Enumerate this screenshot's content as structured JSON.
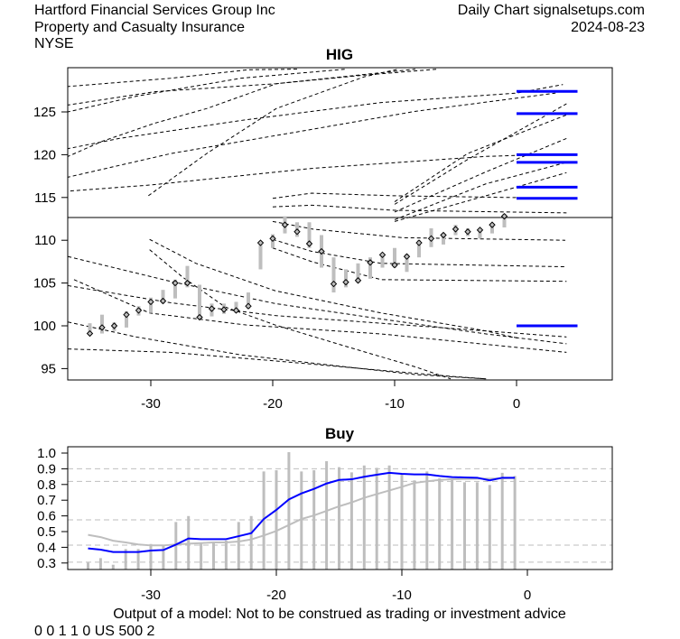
{
  "header": {
    "company": "Hartford Financial Services Group Inc",
    "industry": "Property and Casualty Insurance",
    "exchange": "NYSE",
    "source": "Daily Chart signalsetups.com",
    "date": "2024-08-23"
  },
  "footer": {
    "disclaimer": "Output of a model: Not to be construed as trading or investment advice",
    "code": "0 0 1 1 0 US 500 2"
  },
  "chart_data": [
    {
      "type": "candlestick",
      "title": "HIG",
      "xlim": [
        -37,
        8
      ],
      "ylim": [
        93.8,
        130.2
      ],
      "x_ticks": [
        -30,
        -20,
        -10,
        0
      ],
      "y_ticks": [
        95,
        100,
        105,
        110,
        115,
        120,
        125
      ],
      "colors": {
        "bars": "#bebebe",
        "levels": "#0000ff",
        "trend_lines": "#000000"
      },
      "days": [
        -35,
        -34,
        -33,
        -32,
        -31,
        -30,
        -29,
        -28,
        -27,
        -26,
        -25,
        -24,
        -23,
        -22,
        -21,
        -20,
        -19,
        -18,
        -17,
        -16,
        -15,
        -14,
        -13,
        -12,
        -11,
        -10,
        -9,
        -8,
        -7,
        -6,
        -5,
        -4,
        -3,
        -2,
        -1
      ],
      "high": [
        100.3,
        101.3,
        100.4,
        101.7,
        102.3,
        103.3,
        104.2,
        105.4,
        107.0,
        104.8,
        102.6,
        102.6,
        102.8,
        103.9,
        109.9,
        110.7,
        112.8,
        112.1,
        112.1,
        110.6,
        108.0,
        106.6,
        107.3,
        108.0,
        108.5,
        109.1,
        108.4,
        110.0,
        111.4,
        110.8,
        111.8,
        111.4,
        111.4,
        112.0,
        113.1
      ],
      "low": [
        98.9,
        99.1,
        99.4,
        99.8,
        101.2,
        101.5,
        102.6,
        103.2,
        104.5,
        100.8,
        101.1,
        101.4,
        101.5,
        102.0,
        106.6,
        109.1,
        110.8,
        110.4,
        109.1,
        106.8,
        103.9,
        104.5,
        105.0,
        105.5,
        106.8,
        106.8,
        106.3,
        108.0,
        109.2,
        109.5,
        110.6,
        110.5,
        110.2,
        110.8,
        111.5
      ],
      "close": [
        99.1,
        99.8,
        100.0,
        101.3,
        101.8,
        102.8,
        102.9,
        105.0,
        105.0,
        101.0,
        102.0,
        101.9,
        101.8,
        102.3,
        109.7,
        110.2,
        111.8,
        111.0,
        109.6,
        108.7,
        104.9,
        105.1,
        105.3,
        107.4,
        108.3,
        107.1,
        108.1,
        109.7,
        110.2,
        110.6,
        111.3,
        111.0,
        111.2,
        111.8,
        112.8
      ],
      "horizontal_line": 112.66,
      "levels": [
        127.4,
        124.8,
        120.0,
        119.1,
        116.2,
        114.9,
        100.0
      ],
      "trend_lines": [
        [
          [
            -36.9,
            127.96
          ],
          [
            -28.3,
            128.94
          ],
          [
            -22.0,
            129.93
          ],
          [
            -18.0,
            130.0
          ]
        ],
        [
          [
            -36.9,
            125.78
          ],
          [
            -29.7,
            127.36
          ],
          [
            -19.7,
            128.3
          ],
          [
            -8.3,
            130.0
          ]
        ],
        [
          [
            -36.9,
            124.97
          ],
          [
            -31.2,
            126.83
          ],
          [
            -22.6,
            128.94
          ],
          [
            -14.0,
            130.0
          ]
        ],
        [
          [
            -36.9,
            120.68
          ],
          [
            -32.6,
            121.9
          ],
          [
            -22.6,
            124.0
          ],
          [
            -11.1,
            126.1
          ],
          [
            0,
            127.2
          ],
          [
            3.8,
            128.2
          ]
        ],
        [
          [
            -36.9,
            119.73
          ],
          [
            -34.0,
            121.56
          ],
          [
            -29.7,
            123.67
          ],
          [
            -25.4,
            125.4
          ],
          [
            -19.7,
            128.3
          ],
          [
            -12.5,
            129.3
          ],
          [
            -6.5,
            130.0
          ]
        ],
        [
          [
            -36.9,
            117.34
          ],
          [
            -28.3,
            120.15
          ],
          [
            -16.8,
            122.96
          ],
          [
            -8.3,
            125.07
          ],
          [
            3.2,
            127.2
          ]
        ],
        [
          [
            -36.6,
            115.76
          ],
          [
            -30.0,
            116.46
          ],
          [
            -16.8,
            118.4
          ],
          [
            -2.5,
            119.8
          ],
          [
            1.5,
            119.98
          ]
        ],
        [
          [
            -30.2,
            115.2
          ],
          [
            -25.4,
            120.15
          ],
          [
            -19.7,
            125.4
          ],
          [
            -12.5,
            129.1
          ],
          [
            -9.7,
            130.0
          ]
        ],
        [
          [
            -20,
            114.9
          ],
          [
            -16.8,
            115.5
          ],
          [
            -10,
            115.2
          ],
          [
            4.1,
            114.9
          ]
        ],
        [
          [
            -20,
            113.9
          ],
          [
            -16.8,
            114.1
          ],
          [
            -10,
            113.5
          ],
          [
            4.1,
            113.2
          ]
        ],
        [
          [
            -10,
            114.2
          ],
          [
            -4.0,
            119.45
          ],
          [
            4.1,
            125.95
          ]
        ],
        [
          [
            -10,
            114.5
          ],
          [
            -4.0,
            120.15
          ],
          [
            4.1,
            124.65
          ]
        ],
        [
          [
            -10,
            113.3
          ],
          [
            -2.5,
            118.0
          ],
          [
            4.1,
            121.9
          ]
        ],
        [
          [
            -10,
            112.4
          ],
          [
            -2.5,
            116.6
          ],
          [
            4.1,
            119.1
          ]
        ],
        [
          [
            -10,
            112.2
          ],
          [
            -2.5,
            115.2
          ],
          [
            4.1,
            117.9
          ]
        ],
        [
          [
            -20,
            112.2
          ],
          [
            -16.7,
            111.3
          ],
          [
            -9.3,
            110.3
          ],
          [
            4.0,
            110.0
          ]
        ],
        [
          [
            -20,
            110.1
          ],
          [
            -16.8,
            108.7
          ],
          [
            -11.1,
            107.3
          ],
          [
            4.1,
            106.9
          ]
        ],
        [
          [
            -20,
            109.1
          ],
          [
            -16.8,
            107.5
          ],
          [
            -11.1,
            105.4
          ],
          [
            4.1,
            105.2
          ]
        ],
        [
          [
            -36.8,
            108.1
          ],
          [
            -28.4,
            105.2
          ],
          [
            -19.8,
            102.6
          ],
          [
            -11.1,
            100.8
          ],
          [
            -2.5,
            99.05
          ],
          [
            4.1,
            97.9
          ]
        ],
        [
          [
            -36.8,
            104.7
          ],
          [
            -28.4,
            102.7
          ],
          [
            -19.8,
            101.2
          ],
          [
            -11.1,
            100.3
          ],
          [
            -2.5,
            99.4
          ],
          [
            4.1,
            98.7
          ]
        ],
        [
          [
            -36.3,
            105.4
          ],
          [
            -30.1,
            101.5
          ],
          [
            -22.2,
            100.1
          ],
          [
            -11.1,
            99.05
          ],
          [
            4.1,
            96.9
          ]
        ],
        [
          [
            -36.8,
            100.45
          ],
          [
            -31.2,
            98.7
          ],
          [
            -22.6,
            96.6
          ],
          [
            -14.0,
            95.2
          ],
          [
            -8.3,
            94.3
          ],
          [
            -2.5,
            93.8
          ]
        ],
        [
          [
            -36.8,
            97.3
          ],
          [
            -28.4,
            96.9
          ],
          [
            -19.8,
            95.9
          ],
          [
            -11.1,
            94.8
          ],
          [
            -5.4,
            94.1
          ],
          [
            -2.5,
            93.8
          ]
        ],
        [
          [
            -30.1,
            110.1
          ],
          [
            -26.3,
            107.3
          ],
          [
            -19.8,
            104.1
          ],
          [
            -11.1,
            101.5
          ],
          [
            -2.5,
            99.4
          ],
          [
            0.3,
            98.5
          ]
        ],
        [
          [
            -30.1,
            108.9
          ],
          [
            -27.4,
            105.7
          ],
          [
            -23.9,
            102.2
          ],
          [
            -19.8,
            100.1
          ],
          [
            -14.0,
            97.6
          ],
          [
            -8.3,
            95.2
          ],
          [
            -5.4,
            93.8
          ]
        ]
      ]
    },
    {
      "type": "bar+line",
      "title": "Buy",
      "xlim": [
        -37,
        7
      ],
      "ylim": [
        0.26,
        1.04
      ],
      "x_ticks": [
        -30,
        -20,
        -10,
        0
      ],
      "y_ticks": [
        1.0,
        0.9,
        0.8,
        0.7,
        0.6,
        0.5,
        0.4,
        0.3
      ],
      "y_tick_labels": [
        "1.0",
        "0.9",
        "0.8",
        "0.7",
        "0.6",
        "0.5",
        "0.4",
        "0.3"
      ],
      "grid_lines": [
        0.9,
        0.82,
        0.575,
        0.414,
        0.305
      ],
      "colors": {
        "bars": "#bebebe",
        "line_1": "#0000ff",
        "line_2": "#bebebe",
        "grid": "#bebebe"
      },
      "days": [
        -35,
        -34,
        -33,
        -32,
        -31,
        -30,
        -29,
        -28,
        -27,
        -26,
        -25,
        -24,
        -23,
        -22,
        -21,
        -20,
        -19,
        -18,
        -17,
        -16,
        -15,
        -14,
        -13,
        -12,
        -11,
        -10,
        -9,
        -8,
        -7,
        -6,
        -5,
        -4,
        -3,
        -2,
        -1
      ],
      "bars": [
        0.303,
        0.331,
        0.289,
        0.389,
        0.389,
        0.421,
        0.408,
        0.561,
        0.599,
        0.427,
        0.431,
        0.443,
        0.561,
        0.599,
        0.883,
        0.891,
        1.006,
        0.883,
        0.891,
        0.948,
        0.91,
        0.877,
        0.921,
        0.906,
        0.921,
        0.868,
        0.826,
        0.883,
        0.839,
        0.83,
        0.814,
        0.814,
        0.797,
        0.874,
        0.854
      ],
      "series": [
        {
          "values": [
            0.393,
            0.385,
            0.37,
            0.37,
            0.37,
            0.379,
            0.383,
            0.417,
            0.456,
            0.452,
            0.452,
            0.452,
            0.471,
            0.49,
            0.58,
            0.638,
            0.705,
            0.743,
            0.772,
            0.806,
            0.829,
            0.833,
            0.849,
            0.862,
            0.874,
            0.868,
            0.864,
            0.864,
            0.854,
            0.847,
            0.845,
            0.843,
            0.826,
            0.843,
            0.843
          ]
        },
        {
          "values": [
            0.479,
            0.465,
            0.442,
            0.431,
            0.418,
            0.412,
            0.412,
            0.418,
            0.423,
            0.427,
            0.431,
            0.431,
            0.437,
            0.45,
            0.475,
            0.504,
            0.542,
            0.58,
            0.603,
            0.632,
            0.661,
            0.686,
            0.715,
            0.739,
            0.762,
            0.785,
            0.81,
            0.82,
            0.829,
            0.833,
            0.835,
            0.837,
            0.837,
            0.839,
            0.841
          ]
        }
      ]
    }
  ]
}
